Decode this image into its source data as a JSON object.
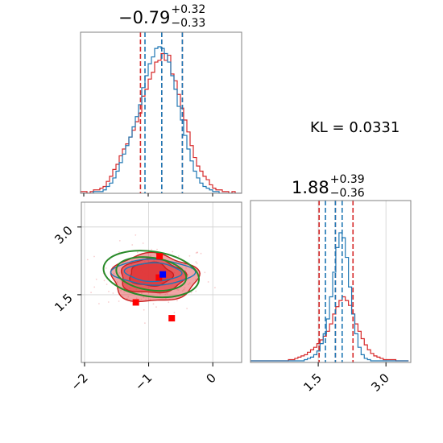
{
  "colors": {
    "reference": "#d62728",
    "comparison": "#1f77b4",
    "contour_fill": "#e0373a",
    "contour_dark": "#c81e1e",
    "gaussian": "#2a8a2a",
    "true_point": "#0000ff",
    "markers": "#ff0000",
    "frame": "#808080",
    "grid": "#d0d0d0"
  },
  "titles": {
    "p1": {
      "main": "−0.79",
      "sup": "+0.32",
      "sub": "−0.33"
    },
    "p2": {
      "main": "1.88",
      "sup": "+0.39",
      "sub": "−0.36"
    }
  },
  "kl_text": "KL = 0.0331",
  "chart_data": {
    "type": "corner",
    "parameters": [
      "p1",
      "p2"
    ],
    "p1_range": [
      -2.05,
      0.45
    ],
    "p2_range": [
      0.0,
      3.55
    ],
    "p1_ticks": [
      {
        "value": -2,
        "label": "−2"
      },
      {
        "value": -1,
        "label": "−1"
      },
      {
        "value": 0,
        "label": "0"
      }
    ],
    "p2_ticks": [
      {
        "value": 1.5,
        "label": "1.5"
      },
      {
        "value": 3.0,
        "label": "3.0"
      }
    ],
    "p1_quantiles": {
      "reference": [
        -1.12,
        -0.79,
        -0.47
      ],
      "comparison": [
        -1.05,
        -0.79,
        -0.47
      ]
    },
    "p2_quantiles": {
      "reference": [
        1.52,
        1.88,
        2.27
      ],
      "comparison": [
        1.66,
        1.88,
        2.03
      ]
    },
    "kl_divergence": 0.0331,
    "true_value": [
      -0.78,
      1.95
    ],
    "markers": [
      [
        -0.83,
        2.35
      ],
      [
        -1.2,
        1.33
      ],
      [
        -0.64,
        0.98
      ],
      [
        -0.84,
        1.88
      ]
    ],
    "gaussian_ellipses": [
      {
        "cx": -0.96,
        "cy": 1.96,
        "rx": 0.55,
        "ry": 0.36
      },
      {
        "cx": -0.96,
        "cy": 1.96,
        "rx": 0.75,
        "ry": 0.5
      }
    ],
    "contours": [
      {
        "cx": -0.92,
        "cy": 1.87,
        "rx": 0.67,
        "ry": 0.53
      },
      {
        "cx": -0.95,
        "cy": 1.91,
        "rx": 0.5,
        "ry": 0.38
      },
      {
        "cx": -0.97,
        "cy": 1.95,
        "rx": 0.33,
        "ry": 0.26
      }
    ],
    "comparison_contours": [
      {
        "cx": -0.93,
        "cy": 2.0,
        "rx": 0.62,
        "ry": 0.28
      },
      {
        "cx": -0.93,
        "cy": 2.0,
        "rx": 0.43,
        "ry": 0.2
      }
    ],
    "p1_hist": {
      "reference": {
        "edges_start": -2.05,
        "bin_width": 0.05,
        "counts": [
          1,
          1,
          0,
          1,
          2,
          2,
          3,
          4,
          7,
          10,
          14,
          17,
          22,
          26,
          29,
          33,
          37,
          42,
          47,
          57,
          61,
          67,
          71,
          77,
          78,
          82,
          78,
          81,
          70,
          66,
          58,
          50,
          43,
          36,
          28,
          21,
          16,
          13,
          10,
          8,
          5,
          3,
          2,
          2,
          1,
          1,
          0,
          1,
          0,
          0
        ]
      },
      "comparison": {
        "edges_start": -2.05,
        "bin_width": 0.05,
        "counts": [
          0,
          0,
          0,
          0,
          1,
          1,
          1,
          2,
          4,
          6,
          9,
          13,
          18,
          23,
          28,
          33,
          39,
          45,
          52,
          62,
          69,
          76,
          80,
          85,
          86,
          85,
          82,
          77,
          69,
          61,
          51,
          43,
          34,
          26,
          19,
          13,
          9,
          6,
          4,
          3,
          2,
          1,
          1,
          0,
          0,
          0,
          0,
          0,
          0,
          0
        ]
      }
    },
    "p2_hist": {
      "reference": {
        "edges_start": 0.0,
        "bin_width": 0.07,
        "counts": [
          0,
          0,
          0,
          0,
          0,
          0,
          0,
          0,
          0,
          0,
          0,
          0,
          1,
          1,
          2,
          3,
          4,
          5,
          7,
          9,
          11,
          14,
          17,
          20,
          24,
          30,
          38,
          44,
          49,
          52,
          49,
          45,
          38,
          30,
          24,
          18,
          13,
          9,
          6,
          4,
          3,
          2,
          1,
          1,
          1,
          1,
          0,
          0,
          0,
          0
        ]
      },
      "comparison": {
        "edges_start": 0.0,
        "bin_width": 0.07,
        "counts": [
          0,
          0,
          0,
          0,
          0,
          0,
          0,
          0,
          0,
          0,
          0,
          0,
          0,
          0,
          0,
          0,
          0,
          1,
          2,
          3,
          5,
          8,
          14,
          22,
          34,
          52,
          72,
          92,
          104,
          100,
          84,
          60,
          38,
          22,
          11,
          5,
          2,
          1,
          0,
          0,
          0,
          0,
          0,
          0,
          0,
          0,
          0,
          0,
          0,
          0
        ]
      }
    }
  }
}
